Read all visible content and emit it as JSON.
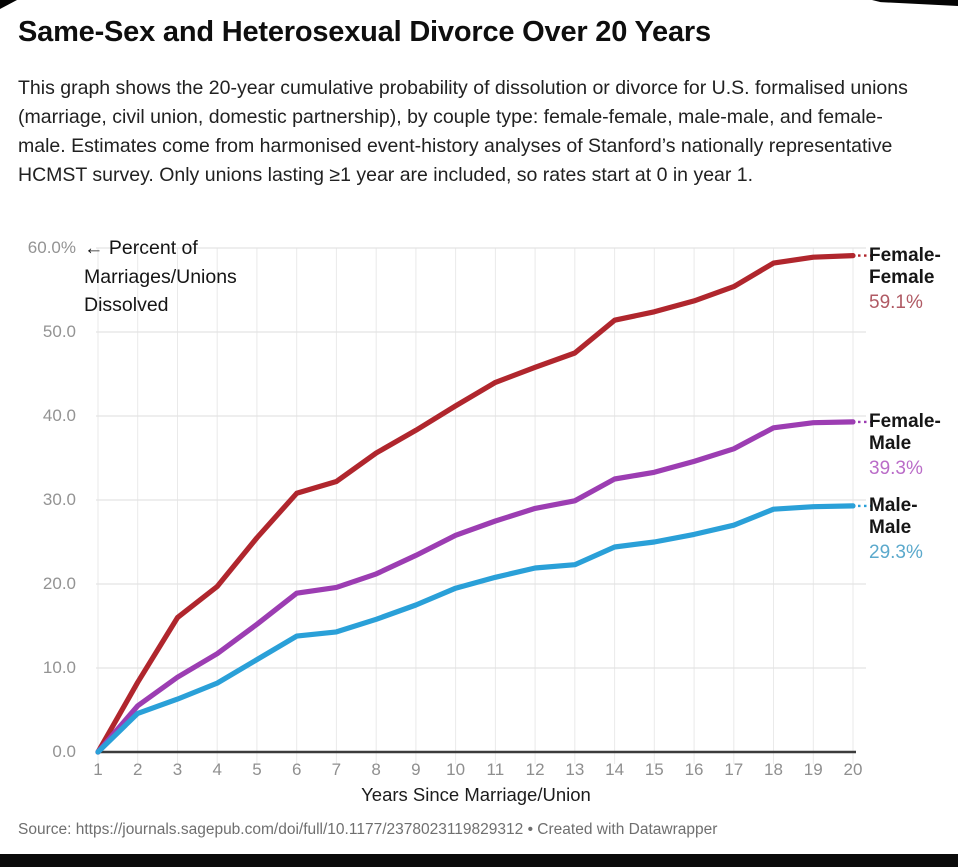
{
  "page": {
    "title": "Same-Sex and Heterosexual Divorce Over 20 Years",
    "description": "This graph shows the 20-year cumulative probability of dissolution or divorce for U.S. formalised unions (marriage, civil union, domestic partnership), by couple type: female-female, male-male, and female-male. Estimates come from harmonised event-history analyses of Stanford’s nationally representative HCMST survey. Only unions lasting ≥1 year are included, so rates start at 0 in year 1.",
    "source_line": "Source: https://journals.sagepub.com/doi/full/10.1177/2378023119829312 • Created with Datawrapper"
  },
  "chart_data": {
    "type": "line",
    "title": "Same-Sex and Heterosexual Divorce Over 20 Years",
    "xlabel": "Years Since Marriage/Union",
    "ylabel": "Percent of Marriages/Unions Dissolved",
    "y_annotation": "← Percent of\nMarriages/Unions\nDissolved",
    "grid": true,
    "legend_position": "right",
    "x": [
      1,
      2,
      3,
      4,
      5,
      6,
      7,
      8,
      9,
      10,
      11,
      12,
      13,
      14,
      15,
      16,
      17,
      18,
      19,
      20
    ],
    "xlim": [
      1,
      20
    ],
    "ylim": [
      0,
      60
    ],
    "yticks": [
      {
        "value": 60,
        "label": "60.0%"
      },
      {
        "value": 50,
        "label": "50.0"
      },
      {
        "value": 40,
        "label": "40.0"
      },
      {
        "value": 30,
        "label": "30.0"
      },
      {
        "value": 20,
        "label": "20.0"
      },
      {
        "value": 10,
        "label": "10.0"
      },
      {
        "value": 0,
        "label": "0.0"
      }
    ],
    "series": [
      {
        "name": "Female-Female",
        "label_lines": "Female-\nFemale",
        "value_label": "59.1%",
        "color": "#b0262d",
        "value_color": "#b05a64",
        "values": [
          0,
          8.3,
          16.0,
          19.7,
          25.5,
          30.8,
          32.2,
          35.6,
          38.3,
          41.2,
          44.0,
          45.8,
          47.5,
          51.4,
          52.4,
          53.7,
          55.4,
          58.2,
          58.9,
          59.1
        ]
      },
      {
        "name": "Female-Male",
        "label_lines": "Female-\nMale",
        "value_label": "39.3%",
        "color": "#9c3db2",
        "value_color": "#ba6cc8",
        "values": [
          0,
          5.5,
          8.9,
          11.7,
          15.2,
          18.9,
          19.6,
          21.2,
          23.4,
          25.8,
          27.5,
          29.0,
          29.9,
          32.5,
          33.3,
          34.6,
          36.1,
          38.6,
          39.2,
          39.3
        ]
      },
      {
        "name": "Male-Male",
        "label_lines": "Male-\nMale",
        "value_label": "29.3%",
        "color": "#2aa0d8",
        "value_color": "#5ba9cc",
        "values": [
          0,
          4.6,
          6.3,
          8.2,
          11.0,
          13.8,
          14.3,
          15.8,
          17.5,
          19.5,
          20.8,
          21.9,
          22.3,
          24.4,
          25.0,
          25.9,
          27.0,
          28.9,
          29.2,
          29.3
        ]
      }
    ]
  }
}
